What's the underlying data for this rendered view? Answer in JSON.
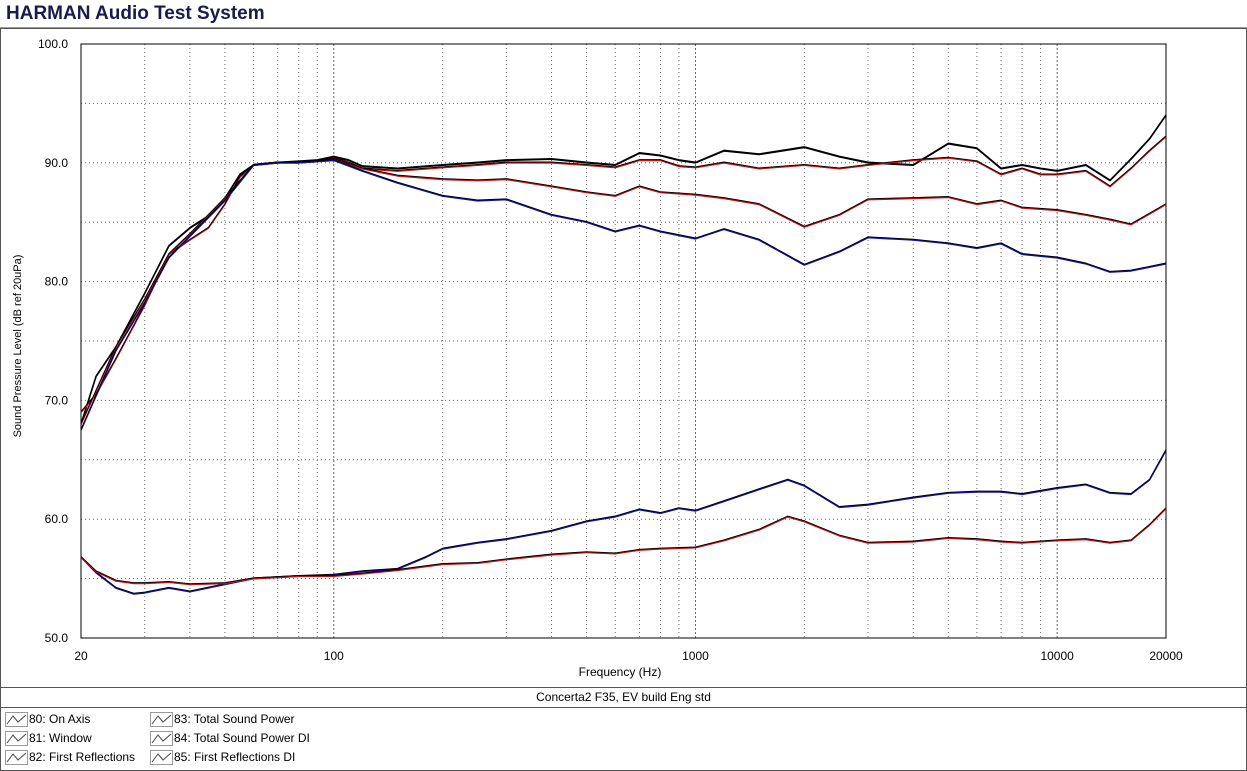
{
  "app": {
    "title": "HARMAN Audio Test System"
  },
  "caption": "Concerta2 F35, EV build Eng std",
  "legend": [
    {
      "label": "80: On Axis"
    },
    {
      "label": "81: Window"
    },
    {
      "label": "82: First Reflections"
    },
    {
      "label": "83: Total Sound Power"
    },
    {
      "label": "84: Total Sound Power DI"
    },
    {
      "label": "85: First Reflections DI"
    }
  ],
  "chart_data": {
    "type": "line",
    "title": "",
    "xlabel": "Frequency (Hz)",
    "ylabel": "Sound Pressure Level (dB ref 20uPa)",
    "xscale": "log",
    "xlim": [
      20,
      20000
    ],
    "ylim": [
      50,
      100
    ],
    "xticks": [
      "20",
      "100",
      "1000",
      "10000",
      "20000"
    ],
    "yticks": [
      "50.0",
      "60.0",
      "70.0",
      "80.0",
      "90.0",
      "100.0"
    ],
    "grid": true,
    "colors": {
      "primary": "#000000",
      "secondary": "#c01010",
      "tertiary": "#1010b0"
    },
    "series": [
      {
        "name": "80: On Axis",
        "color": "#000000",
        "x": [
          20,
          22,
          25,
          30,
          35,
          40,
          45,
          50,
          55,
          60,
          70,
          80,
          90,
          100,
          110,
          120,
          150,
          200,
          250,
          300,
          400,
          500,
          600,
          700,
          800,
          900,
          1000,
          1200,
          1500,
          2000,
          2500,
          3000,
          4000,
          5000,
          6000,
          7000,
          8000,
          9000,
          10000,
          12000,
          14000,
          16000,
          18000,
          20000
        ],
        "y": [
          68,
          72,
          74.5,
          79,
          83,
          84.5,
          85.5,
          87,
          89,
          89.8,
          90,
          90.1,
          90.2,
          90.5,
          90.2,
          89.7,
          89.5,
          89.8,
          90,
          90.2,
          90.3,
          90,
          89.8,
          90.8,
          90.6,
          90.2,
          90,
          91,
          90.7,
          91.3,
          90.5,
          90,
          89.8,
          91.6,
          91.2,
          89.5,
          89.8,
          89.5,
          89.3,
          89.8,
          88.5,
          90.3,
          92,
          94
        ]
      },
      {
        "name": "81: Window",
        "color": "#c01010",
        "x": [
          20,
          22,
          25,
          30,
          35,
          40,
          45,
          50,
          55,
          60,
          70,
          80,
          90,
          100,
          110,
          120,
          150,
          200,
          250,
          300,
          400,
          500,
          600,
          700,
          800,
          900,
          1000,
          1200,
          1500,
          2000,
          2500,
          3000,
          4000,
          5000,
          6000,
          7000,
          8000,
          9000,
          10000,
          12000,
          14000,
          16000,
          18000,
          20000
        ],
        "y": [
          69,
          70.5,
          73.5,
          78,
          82.3,
          83.5,
          84.5,
          86.5,
          88.8,
          89.8,
          90,
          90,
          90.1,
          90.4,
          90,
          89.5,
          89.3,
          89.6,
          89.8,
          90,
          90,
          89.8,
          89.6,
          90.2,
          90.2,
          89.7,
          89.6,
          90,
          89.5,
          89.8,
          89.5,
          89.8,
          90.2,
          90.4,
          90.1,
          89,
          89.5,
          89,
          89,
          89.3,
          88,
          89.5,
          91,
          92.2
        ]
      },
      {
        "name": "82: First Reflections",
        "color": "#c01010",
        "x": [
          20,
          25,
          30,
          35,
          40,
          50,
          60,
          70,
          80,
          100,
          120,
          150,
          200,
          250,
          300,
          400,
          500,
          600,
          700,
          800,
          1000,
          1200,
          1500,
          2000,
          2500,
          3000,
          4000,
          5000,
          6000,
          7000,
          8000,
          10000,
          12000,
          14000,
          16000,
          20000
        ],
        "y": [
          68,
          74.5,
          78.5,
          82.3,
          84,
          87,
          89.8,
          90,
          90,
          90.3,
          89.5,
          88.9,
          88.6,
          88.5,
          88.6,
          88,
          87.5,
          87.2,
          88,
          87.5,
          87.3,
          87,
          86.5,
          84.6,
          85.6,
          86.9,
          87,
          87.1,
          86.5,
          86.8,
          86.2,
          86,
          85.6,
          85.2,
          84.8,
          86.5
        ]
      },
      {
        "name": "83: Total Sound Power",
        "color": "#1010b0",
        "x": [
          20,
          25,
          30,
          35,
          40,
          50,
          60,
          70,
          80,
          100,
          120,
          150,
          200,
          250,
          300,
          400,
          500,
          600,
          700,
          800,
          1000,
          1200,
          1500,
          2000,
          2500,
          3000,
          4000,
          5000,
          6000,
          7000,
          8000,
          10000,
          12000,
          14000,
          16000,
          20000
        ],
        "y": [
          67.5,
          74.2,
          78.2,
          82,
          83.8,
          86.8,
          89.8,
          90,
          90,
          90.2,
          89.3,
          88.3,
          87.2,
          86.8,
          86.9,
          85.6,
          85,
          84.2,
          84.7,
          84.2,
          83.6,
          84.4,
          83.5,
          81.4,
          82.5,
          83.7,
          83.5,
          83.2,
          82.8,
          83.2,
          82.3,
          82,
          81.5,
          80.8,
          80.9,
          81.5
        ]
      },
      {
        "name": "84: Total Sound Power DI",
        "color": "#1010b0",
        "x": [
          20,
          22,
          25,
          28,
          30,
          35,
          40,
          50,
          60,
          70,
          80,
          100,
          120,
          150,
          180,
          200,
          250,
          300,
          400,
          500,
          600,
          700,
          800,
          900,
          1000,
          1200,
          1500,
          1800,
          2000,
          2500,
          3000,
          4000,
          5000,
          6000,
          7000,
          8000,
          10000,
          12000,
          14000,
          16000,
          18000,
          20000
        ],
        "y": [
          56.8,
          55.5,
          54.2,
          53.7,
          53.8,
          54.2,
          53.9,
          54.5,
          55,
          55.1,
          55.2,
          55.3,
          55.6,
          55.8,
          56.8,
          57.5,
          58,
          58.3,
          59,
          59.8,
          60.2,
          60.8,
          60.5,
          60.9,
          60.7,
          61.5,
          62.5,
          63.3,
          62.8,
          61,
          61.2,
          61.8,
          62.2,
          62.3,
          62.3,
          62.1,
          62.6,
          62.9,
          62.2,
          62.1,
          63.3,
          65.8
        ]
      },
      {
        "name": "85: First Reflections DI",
        "color": "#c01010",
        "x": [
          20,
          22,
          25,
          28,
          30,
          35,
          40,
          50,
          60,
          70,
          80,
          100,
          120,
          150,
          200,
          250,
          300,
          400,
          500,
          600,
          700,
          800,
          1000,
          1200,
          1500,
          1800,
          2000,
          2500,
          3000,
          4000,
          5000,
          6000,
          7000,
          8000,
          10000,
          12000,
          14000,
          16000,
          18000,
          20000
        ],
        "y": [
          56.8,
          55.6,
          54.8,
          54.6,
          54.6,
          54.7,
          54.5,
          54.6,
          55,
          55.1,
          55.2,
          55.2,
          55.4,
          55.7,
          56.2,
          56.3,
          56.6,
          57,
          57.2,
          57.1,
          57.4,
          57.5,
          57.6,
          58.2,
          59.1,
          60.2,
          59.8,
          58.6,
          58,
          58.1,
          58.4,
          58.3,
          58.1,
          58,
          58.2,
          58.3,
          58,
          58.2,
          59.5,
          60.9
        ]
      }
    ]
  }
}
